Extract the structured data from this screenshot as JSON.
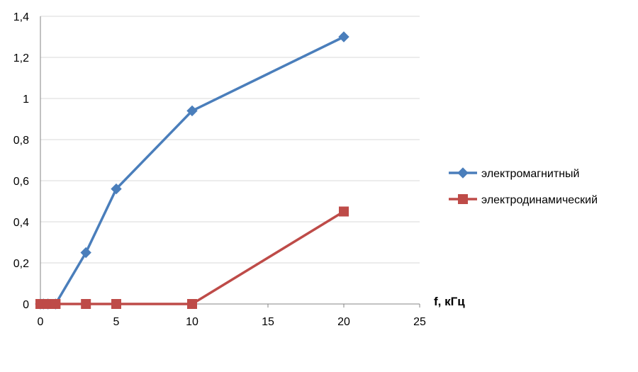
{
  "chart_data": {
    "type": "line",
    "title": "",
    "xlabel": "f, кГц",
    "ylabel": "",
    "xlim": [
      0,
      25
    ],
    "ylim": [
      0,
      1.4
    ],
    "x_ticks": [
      "0",
      "5",
      "10",
      "15",
      "20",
      "25"
    ],
    "x_tick_values": [
      0,
      5,
      10,
      15,
      20,
      25
    ],
    "y_ticks": [
      "0",
      "0,2",
      "0,4",
      "0,6",
      "0,8",
      "1",
      "1,2",
      "1,4"
    ],
    "y_tick_values": [
      0,
      0.2,
      0.4,
      0.6,
      0.8,
      1.0,
      1.2,
      1.4
    ],
    "grid": "horizontal",
    "legend_position": "right",
    "series": [
      {
        "name": "электромагнитный",
        "color": "#4a7ebb",
        "marker": "diamond",
        "x": [
          0,
          0.2,
          0.5,
          1,
          3,
          5,
          10,
          20
        ],
        "y": [
          0,
          0,
          0,
          0,
          0.25,
          0.56,
          0.94,
          1.3
        ]
      },
      {
        "name": "электродинамический",
        "color": "#be4b48",
        "marker": "square",
        "x": [
          0,
          0.2,
          0.5,
          1,
          3,
          5,
          10,
          20
        ],
        "y": [
          0,
          0,
          0,
          0,
          0,
          0,
          0,
          0.45
        ]
      }
    ]
  }
}
